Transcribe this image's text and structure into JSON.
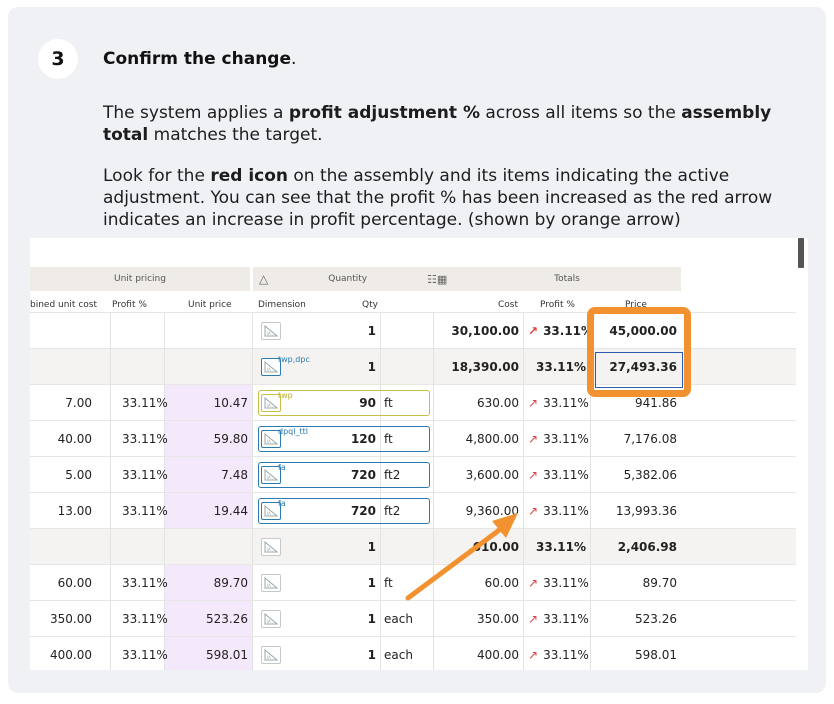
{
  "step": {
    "number": "3",
    "title": "Confirm the change",
    "title_suffix": "."
  },
  "para1": {
    "t1": "The system applies a ",
    "b1": "profit adjustment %",
    "t2": " across all items so the ",
    "b2": "assembly total",
    "t3": " matches the target."
  },
  "para2": {
    "t1": "Look for the ",
    "b1": "red icon",
    "t2": " on the assembly and its items indicating the active adjustment. You can see that the profit % has been increased as the red arrow indicates an increase in profit percentage. (shown by orange arrow)"
  },
  "screenshot": {
    "group_headers": {
      "unit_pricing": "Unit pricing",
      "quantity": "Quantity",
      "totals": "Totals"
    },
    "columns": {
      "combined_unit_cost": "bined unit cost",
      "profit_pct": "Profit %",
      "unit_price": "Unit price",
      "dimension": "Dimension",
      "qty": "Qty",
      "cost": "Cost",
      "profit_pct_total": "Profit %",
      "price": "Price"
    },
    "rows": [
      {
        "unit_cost": "",
        "profit": "",
        "unit_price": "",
        "dim_tag": "",
        "qty": "1",
        "unit": "",
        "cost": "30,100.00",
        "total_profit": "33.11%",
        "price": "45,000.00",
        "arrow": true,
        "style": "assembly"
      },
      {
        "unit_cost": "",
        "profit": "",
        "unit_price": "",
        "dim_tag": "twp,dpc",
        "qty": "1",
        "unit": "",
        "cost": "18,390.00",
        "total_profit": "33.11%",
        "price": "27,493.36",
        "arrow": false,
        "style": "group"
      },
      {
        "unit_cost": "7.00",
        "profit": "33.11%",
        "unit_price": "10.47",
        "dim_tag": "twp",
        "qty": "90",
        "unit": "ft",
        "cost": "630.00",
        "total_profit": "33.11%",
        "price": "941.86",
        "arrow": true,
        "style": "item-yellow"
      },
      {
        "unit_cost": "40.00",
        "profit": "33.11%",
        "unit_price": "59.80",
        "dim_tag": "dpql_ttl",
        "qty": "120",
        "unit": "ft",
        "cost": "4,800.00",
        "total_profit": "33.11%",
        "price": "7,176.08",
        "arrow": true,
        "style": "item-blue"
      },
      {
        "unit_cost": "5.00",
        "profit": "33.11%",
        "unit_price": "7.48",
        "dim_tag": "fa",
        "qty": "720",
        "unit": "ft2",
        "cost": "3,600.00",
        "total_profit": "33.11%",
        "price": "5,382.06",
        "arrow": true,
        "style": "item-blue"
      },
      {
        "unit_cost": "13.00",
        "profit": "33.11%",
        "unit_price": "19.44",
        "dim_tag": "fa",
        "qty": "720",
        "unit": "ft2",
        "cost": "9,360.00",
        "total_profit": "33.11%",
        "price": "13,993.36",
        "arrow": true,
        "style": "item-blue"
      },
      {
        "unit_cost": "",
        "profit": "",
        "unit_price": "",
        "dim_tag": "",
        "qty": "1",
        "unit": "",
        "cost": ",610.00",
        "total_profit": "33.11%",
        "price": "2,406.98",
        "arrow": false,
        "style": "group"
      },
      {
        "unit_cost": "60.00",
        "profit": "33.11%",
        "unit_price": "89.70",
        "dim_tag": "",
        "qty": "1",
        "unit": "ft",
        "cost": "60.00",
        "total_profit": "33.11%",
        "price": "89.70",
        "arrow": true,
        "style": "item"
      },
      {
        "unit_cost": "350.00",
        "profit": "33.11%",
        "unit_price": "523.26",
        "dim_tag": "",
        "qty": "1",
        "unit": "each",
        "cost": "350.00",
        "total_profit": "33.11%",
        "price": "523.26",
        "arrow": true,
        "style": "item"
      },
      {
        "unit_cost": "400.00",
        "profit": "33.11%",
        "unit_price": "598.01",
        "dim_tag": "",
        "qty": "1",
        "unit": "each",
        "cost": "400.00",
        "total_profit": "33.11%",
        "price": "598.01",
        "arrow": true,
        "style": "item"
      }
    ]
  },
  "colors": {
    "highlight_orange": "#f2912f",
    "adjustment_arrow_red": "#e04040",
    "dimension_blue": "#2b7bb0",
    "dimension_yellow": "#c7c047",
    "unit_price_pink": "#f4e8fb"
  },
  "icons": {
    "dimension": "ruler-triangle-icon",
    "adjustment": "trend-up-arrow-icon",
    "quantity": "ruler-icon",
    "totals": "calculator-icon"
  }
}
